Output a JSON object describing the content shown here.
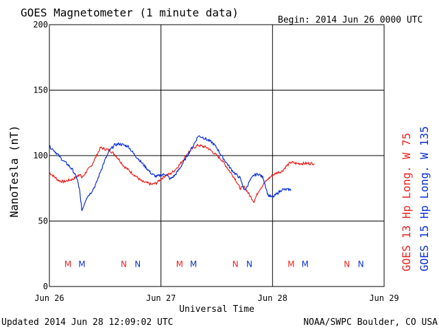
{
  "chart_data": {
    "type": "line",
    "title": "GOES Magnetometer (1 minute data)",
    "begin_label": "Begin:  2014 Jun 26 0000 UTC",
    "xlabel": "Universal Time",
    "ylabel": "NanoTesla (nT)",
    "x_tick_labels": [
      "Jun 26",
      "Jun 27",
      "Jun 28",
      "Jun 29"
    ],
    "xlim": [
      0,
      72
    ],
    "x_units": "hours since 2014 Jun 26 0000 UTC",
    "ylim": [
      0,
      200
    ],
    "y_ticks": [
      0,
      50,
      100,
      150,
      200
    ],
    "grid": true,
    "footer_left": "Updated 2014 Jun 28 12:09:02 UTC",
    "footer_right": "NOAA/SWPC Boulder, CO USA",
    "colors": {
      "goes13": "#e8231e",
      "goes15": "#0b2fd6"
    },
    "series": [
      {
        "name": "GOES 13 Hp",
        "legend": "GOES 13 Hp  Long. W  75",
        "color": "#e8231e",
        "x": [
          0,
          1,
          2,
          3,
          4,
          5,
          6,
          6.5,
          7,
          8,
          9,
          10,
          11,
          12,
          13,
          14,
          15,
          16,
          17,
          18,
          19,
          20,
          21,
          22,
          23,
          24,
          25,
          26,
          27,
          28,
          29,
          30,
          31,
          32,
          33,
          34,
          35,
          36,
          37,
          38,
          39,
          40,
          41,
          42,
          43,
          44,
          45,
          46,
          47,
          48,
          49,
          50,
          51,
          52,
          53,
          54,
          55,
          56,
          57
        ],
        "values": [
          87,
          84,
          81,
          80,
          81,
          82,
          84,
          86,
          83,
          88,
          92,
          99,
          106,
          105,
          104,
          101,
          97,
          92,
          89,
          86,
          83,
          80,
          79,
          78,
          79,
          82,
          85,
          86,
          89,
          93,
          98,
          103,
          106,
          108,
          107,
          106,
          103,
          100,
          97,
          92,
          87,
          82,
          75,
          76,
          70,
          65,
          73,
          78,
          82,
          85,
          87,
          88,
          92,
          95,
          94,
          94,
          94,
          94,
          94
        ]
      },
      {
        "name": "GOES 15 Hp",
        "legend": "GOES 15 Hp  Long. W  135",
        "color": "#0b2fd6",
        "x": [
          0,
          1,
          2,
          3,
          4,
          5,
          6,
          6.5,
          7,
          8,
          9,
          10,
          11,
          12,
          13,
          14,
          15,
          16,
          17,
          18,
          19,
          20,
          21,
          22,
          23,
          24,
          25,
          26,
          27,
          28,
          29,
          30,
          31,
          32,
          33,
          34,
          35,
          36,
          37,
          38,
          39,
          40,
          41,
          42,
          43,
          44,
          45,
          46,
          47,
          48,
          49,
          50,
          51,
          52
        ],
        "values": [
          107,
          104,
          100,
          96,
          93,
          89,
          82,
          73,
          58,
          68,
          72,
          78,
          88,
          97,
          104,
          108,
          109,
          108,
          107,
          102,
          98,
          94,
          90,
          86,
          84,
          85,
          86,
          82,
          85,
          90,
          96,
          102,
          108,
          115,
          114,
          112,
          110,
          106,
          100,
          95,
          90,
          86,
          83,
          73,
          80,
          85,
          86,
          83,
          70,
          68,
          71,
          74,
          74,
          74
        ]
      }
    ],
    "event_markers": {
      "row_value": 17,
      "items": [
        {
          "label": "M",
          "x": 4,
          "series": "GOES 13 Hp"
        },
        {
          "label": "M",
          "x": 7,
          "series": "GOES 15 Hp"
        },
        {
          "label": "N",
          "x": 16,
          "series": "GOES 13 Hp"
        },
        {
          "label": "N",
          "x": 19,
          "series": "GOES 15 Hp"
        },
        {
          "label": "M",
          "x": 28,
          "series": "GOES 13 Hp"
        },
        {
          "label": "M",
          "x": 31,
          "series": "GOES 15 Hp"
        },
        {
          "label": "N",
          "x": 40,
          "series": "GOES 13 Hp"
        },
        {
          "label": "N",
          "x": 43,
          "series": "GOES 15 Hp"
        },
        {
          "label": "M",
          "x": 52,
          "series": "GOES 13 Hp"
        },
        {
          "label": "M",
          "x": 55,
          "series": "GOES 15 Hp"
        },
        {
          "label": "N",
          "x": 64,
          "series": "GOES 13 Hp"
        },
        {
          "label": "N",
          "x": 67,
          "series": "GOES 15 Hp"
        }
      ]
    }
  }
}
